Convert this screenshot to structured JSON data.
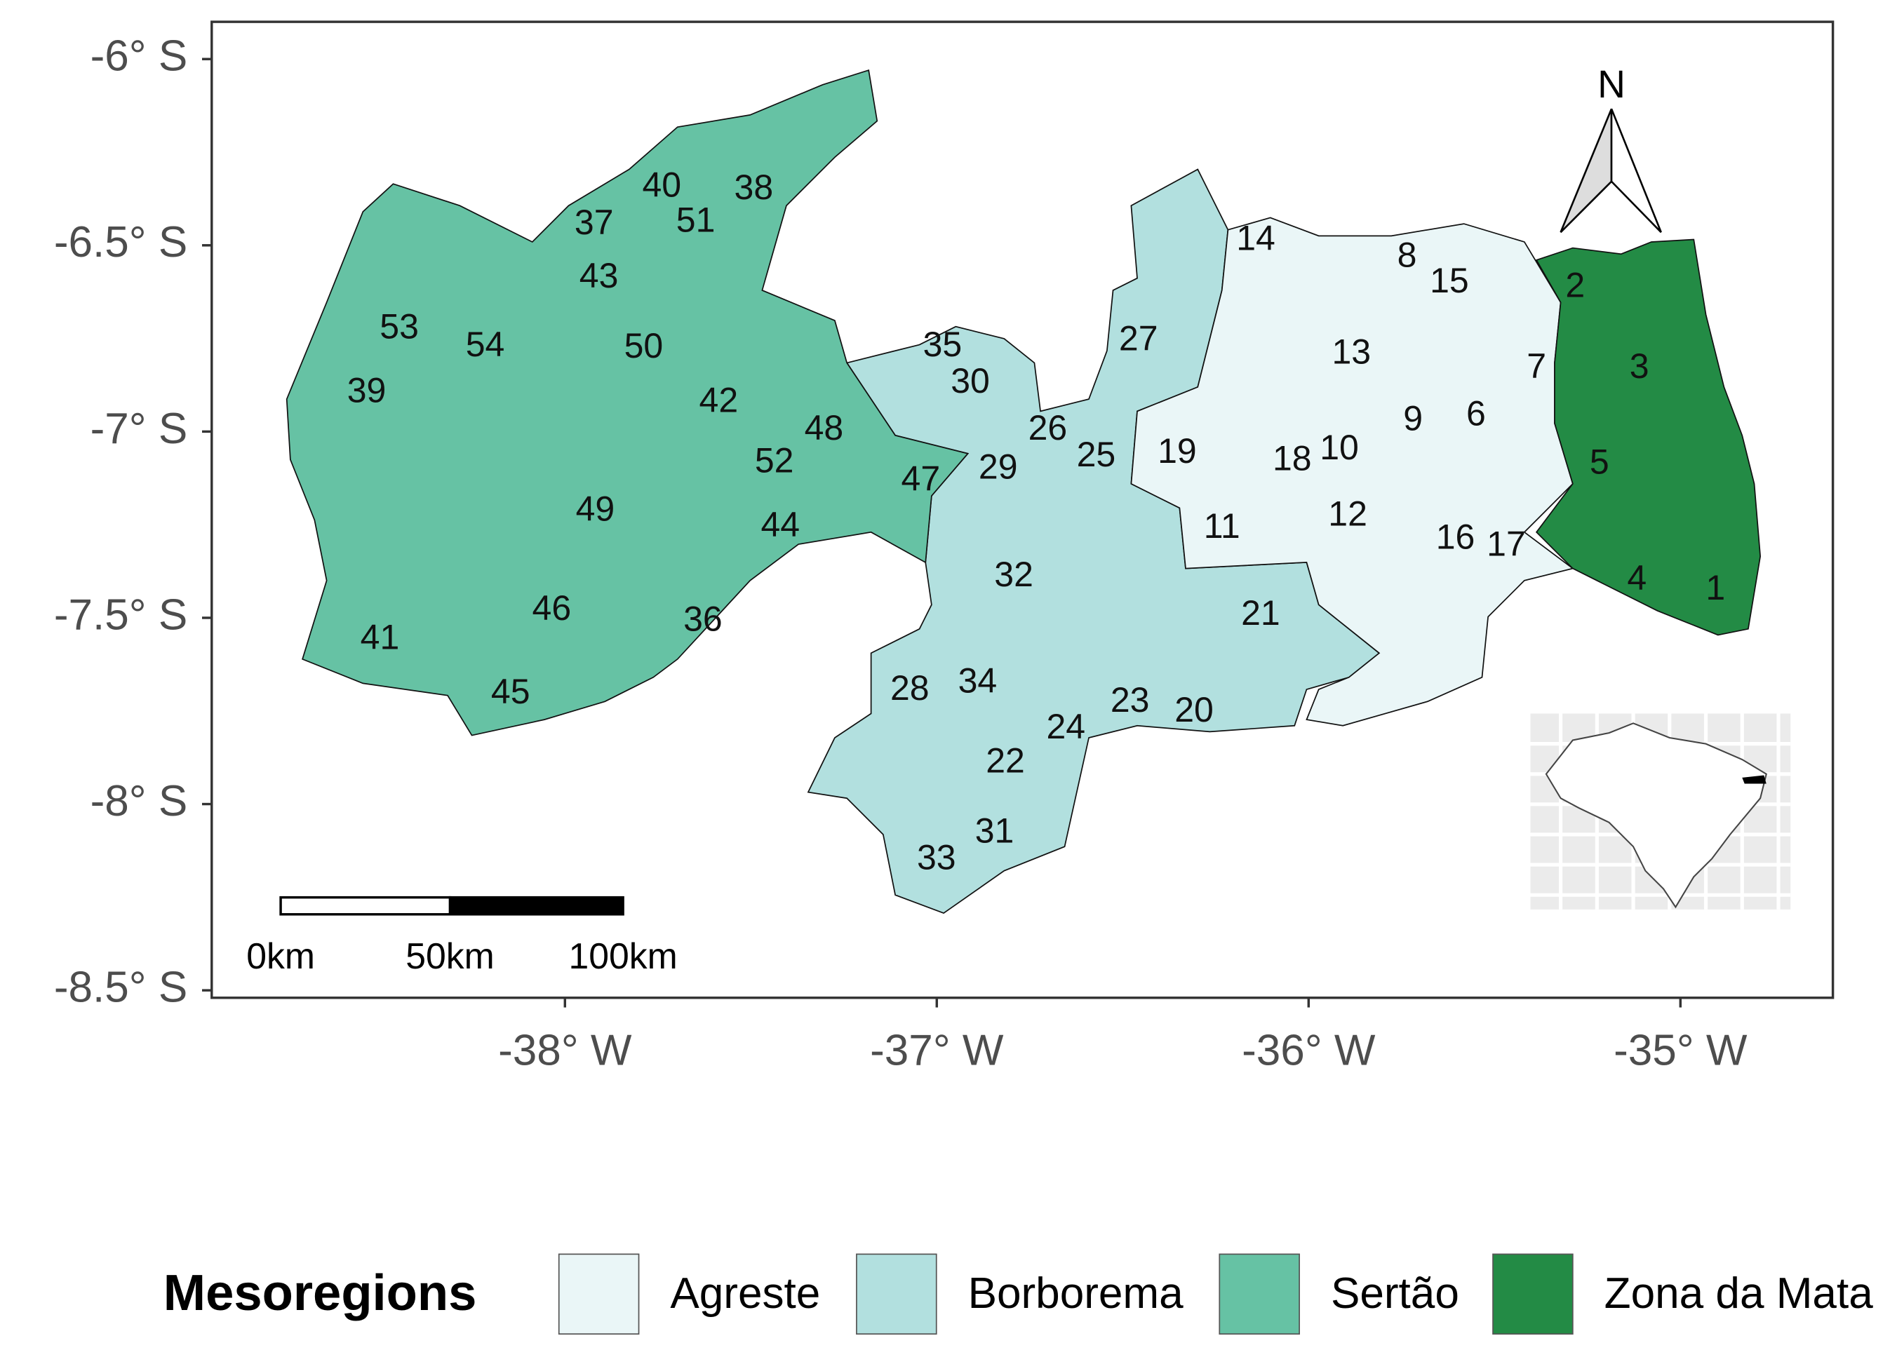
{
  "chart_data": {
    "type": "map",
    "xlim": [
      -38.95,
      -34.59
    ],
    "ylim": [
      -8.52,
      -5.9
    ],
    "xticks": [
      {
        "value": -38,
        "label": "-38° W"
      },
      {
        "value": -37,
        "label": "-37° W"
      },
      {
        "value": -36,
        "label": "-36° W"
      },
      {
        "value": -35,
        "label": "-35° W"
      }
    ],
    "yticks": [
      {
        "value": -6,
        "label": "-6° S"
      },
      {
        "value": -6.5,
        "label": "-6.5° S"
      },
      {
        "value": -7,
        "label": "-7° S"
      },
      {
        "value": -7.5,
        "label": "-7.5° S"
      },
      {
        "value": -8,
        "label": "-8° S"
      },
      {
        "value": -8.5,
        "label": "-8.5° S"
      }
    ],
    "grid": true,
    "legend": {
      "title": "Mesoregions",
      "items": [
        {
          "name": "Agreste",
          "color": "#eaf6f7"
        },
        {
          "name": "Borborema",
          "color": "#b2e0df"
        },
        {
          "name": "Sertão",
          "color": "#66c2a4"
        },
        {
          "name": "Zona da Mata",
          "color": "#238b45"
        }
      ]
    },
    "region_labels": [
      "1",
      "2",
      "3",
      "4",
      "5",
      "6",
      "7",
      "8",
      "9",
      "10",
      "11",
      "12",
      "13",
      "14",
      "15",
      "16",
      "17",
      "18",
      "19",
      "20",
      "21",
      "22",
      "23",
      "24",
      "25",
      "26",
      "27",
      "28",
      "29",
      "30",
      "31",
      "32",
      "33",
      "34",
      "35",
      "36",
      "37",
      "38",
      "39",
      "40",
      "41",
      "42",
      "43",
      "44",
      "45",
      "46",
      "47",
      "48",
      "49",
      "50",
      "51",
      "52",
      "53",
      "54"
    ],
    "scale_bar": {
      "labels": [
        "0km",
        "50km",
        "100km"
      ]
    },
    "north_label": "N"
  }
}
